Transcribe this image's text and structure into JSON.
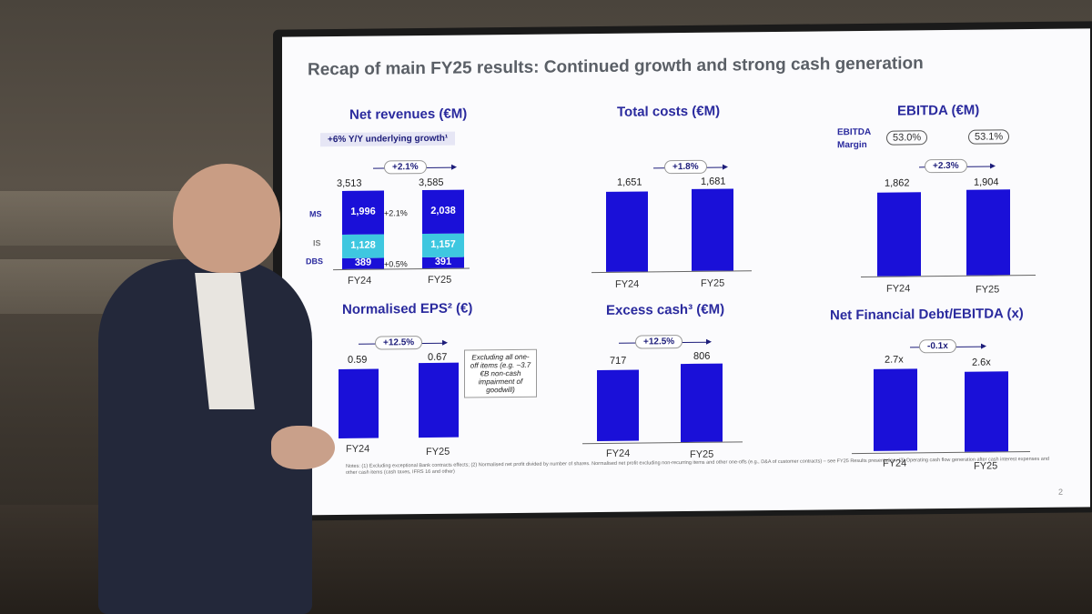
{
  "slide": {
    "title": "Recap of main FY25 results: Continued growth and strong cash generation",
    "page_number": "2",
    "notes": "Notes: (1) Excluding exceptional Bank contracts effects; (2) Normalised net profit divided by number of shares. Normalised net profit excluding non-recurring items and other one-offs (e.g., D&A of customer contracts) – see FY25 Results presentation; (3) Operating cash flow generation after cash interest expenses and other cash items (cash taxes, IFRS 16 and other)"
  },
  "net_revenues": {
    "title": "Net revenues (€M)",
    "pill": "+6% Y/Y underlying growth¹",
    "growth": "+2.1%",
    "totals": [
      "3,513",
      "3,585"
    ],
    "ms_label": "MS",
    "is_label": "IS",
    "dbs_label": "DBS",
    "ms_values": [
      "1,996",
      "2,038"
    ],
    "is_values": [
      "1,128",
      "1,157"
    ],
    "dbs_values": [
      "389",
      "391"
    ],
    "ms_growth": "+2.1%",
    "dbs_growth": "+0.5%",
    "x": [
      "FY24",
      "FY25"
    ]
  },
  "total_costs": {
    "title": "Total costs (€M)",
    "growth": "+1.8%",
    "values": [
      "1,651",
      "1,681"
    ],
    "x": [
      "FY24",
      "FY25"
    ]
  },
  "ebitda": {
    "title": "EBITDA (€M)",
    "margin_label_1": "EBITDA",
    "margin_label_2": "Margin",
    "margins": [
      "53.0%",
      "53.1%"
    ],
    "growth": "+2.3%",
    "values": [
      "1,862",
      "1,904"
    ],
    "x": [
      "FY24",
      "FY25"
    ]
  },
  "eps": {
    "title": "Normalised EPS² (€)",
    "growth": "+12.5%",
    "values": [
      "0.59",
      "0.67"
    ],
    "callout": "Excluding all one-off items (e.g. ~3.7 €B non-cash impairment of goodwill)",
    "x": [
      "FY24",
      "FY25"
    ]
  },
  "excess_cash": {
    "title": "Excess cash³ (€M)",
    "growth": "+12.5%",
    "values": [
      "717",
      "806"
    ],
    "x": [
      "FY24",
      "FY25"
    ]
  },
  "nfd": {
    "title": "Net Financial Debt/EBITDA (x)",
    "growth": "-0.1x",
    "values": [
      "2.7x",
      "2.6x"
    ],
    "x": [
      "FY24",
      "FY25"
    ]
  },
  "colors": {
    "bar": "#1a10d8",
    "ms": "#1a10d8",
    "is": "#3ec7e0",
    "dbs": "#1a10d8",
    "title_text": "#2a2a9e"
  }
}
